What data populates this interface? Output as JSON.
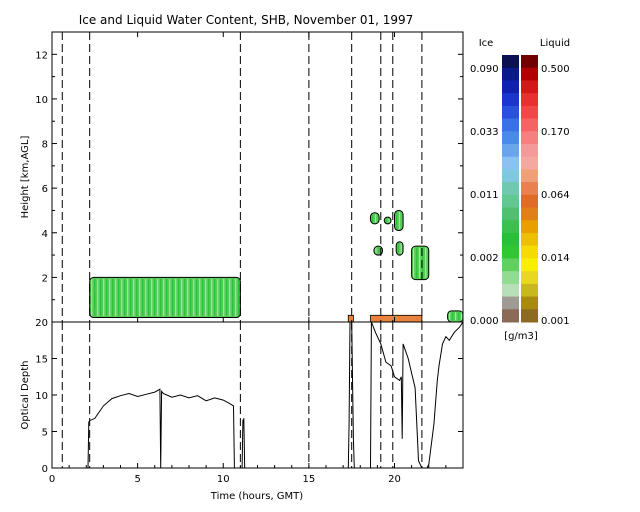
{
  "chart_data": [
    {
      "type": "heatmap",
      "title": "Ice and Liquid Water Content, SHB, November 01, 1997",
      "xlabel": "",
      "ylabel": "Height [km,AGL]",
      "xlim": [
        0,
        24
      ],
      "ylim": [
        0,
        13
      ],
      "x_ticks": [
        0,
        5,
        10,
        15,
        20
      ],
      "x_tick_labels": [
        "",
        "",
        "",
        "",
        ""
      ],
      "y_ticks": [
        2,
        4,
        6,
        8,
        10,
        12
      ],
      "y_tick_labels": [
        "2",
        "4",
        "6",
        "8",
        "10",
        "12"
      ],
      "vertical_dashed_lines_hours": [
        0.6,
        2.2,
        11.0,
        15.0,
        17.5,
        19.2,
        19.9,
        21.6
      ],
      "regions": [
        {
          "kind": "ice",
          "x0": 2.2,
          "x1": 11.0,
          "y0": 0.2,
          "y1": 2.0
        },
        {
          "kind": "ice",
          "x0": 18.6,
          "x1": 19.1,
          "y0": 4.4,
          "y1": 4.9
        },
        {
          "kind": "ice",
          "x0": 19.4,
          "x1": 19.8,
          "y0": 4.4,
          "y1": 4.7
        },
        {
          "kind": "ice",
          "x0": 20.0,
          "x1": 20.5,
          "y0": 4.1,
          "y1": 5.0
        },
        {
          "kind": "ice",
          "x0": 18.8,
          "x1": 19.3,
          "y0": 3.0,
          "y1": 3.4
        },
        {
          "kind": "ice",
          "x0": 20.1,
          "x1": 20.5,
          "y0": 3.0,
          "y1": 3.6
        },
        {
          "kind": "ice",
          "x0": 21.0,
          "x1": 22.0,
          "y0": 1.9,
          "y1": 3.4
        },
        {
          "kind": "ice",
          "x0": 23.1,
          "x1": 24.0,
          "y0": 0.0,
          "y1": 0.5
        },
        {
          "kind": "liquid",
          "x0": 17.3,
          "x1": 17.6,
          "y0": 0.0,
          "y1": 0.3
        },
        {
          "kind": "liquid",
          "x0": 18.6,
          "x1": 21.6,
          "y0": 0.0,
          "y1": 0.3
        }
      ]
    },
    {
      "type": "line",
      "title": "",
      "xlabel": "Time (hours, GMT)",
      "ylabel": "Optical Depth",
      "xlim": [
        0,
        24
      ],
      "ylim": [
        0,
        20
      ],
      "x_ticks": [
        0,
        5,
        10,
        15,
        20
      ],
      "x_tick_labels": [
        "0",
        "5",
        "10",
        "15",
        "20"
      ],
      "y_ticks": [
        0,
        5,
        10,
        15,
        20
      ],
      "y_tick_labels": [
        "0",
        "5",
        "10",
        "15",
        "20"
      ],
      "series": [
        {
          "x": [
            2.1,
            2.15,
            2.2,
            2.5,
            3.0,
            3.5,
            4.0,
            4.5,
            5.0,
            5.5,
            6.0,
            6.3,
            6.35,
            6.4,
            6.5,
            7.0,
            7.5,
            8.0,
            8.5,
            9.0,
            9.5,
            10.0,
            10.4,
            10.6,
            10.65,
            11.1,
            11.15,
            11.2,
            11.25,
            17.3,
            17.35,
            17.4,
            17.5,
            17.6,
            17.65,
            17.7,
            18.6,
            18.65,
            18.9,
            19.2,
            19.5,
            19.8,
            20.0,
            20.3,
            20.4,
            20.45,
            20.5,
            20.8,
            21.0,
            21.2,
            21.4,
            21.6,
            21.9,
            22.0,
            22.3,
            22.5,
            22.6,
            22.8,
            23.0,
            23.2,
            23.5,
            23.8,
            24.0
          ],
          "y": [
            0,
            6.3,
            6.5,
            6.8,
            8.5,
            9.5,
            9.9,
            10.2,
            9.8,
            10.1,
            10.4,
            10.8,
            0,
            10.5,
            10.2,
            9.7,
            10.0,
            9.6,
            9.9,
            9.2,
            9.6,
            9.3,
            8.8,
            8.5,
            0,
            0,
            6.5,
            6.8,
            0,
            0,
            6.3,
            20,
            20,
            4.0,
            0,
            0,
            0,
            20,
            18.5,
            17.0,
            14.5,
            14.0,
            12.5,
            12.0,
            12.5,
            4.0,
            17.0,
            15.0,
            13.0,
            11.0,
            1.0,
            0,
            0,
            0.5,
            6.0,
            12.0,
            14.0,
            17.0,
            18.0,
            17.5,
            18.6,
            19.3,
            20
          ]
        }
      ]
    }
  ],
  "colorbar": {
    "left_label": "Ice",
    "right_label": "Liquid",
    "unit_label": "[g/m3]",
    "ice_values": [
      "0.090",
      "0.033",
      "0.011",
      "0.002",
      "0.000"
    ],
    "liquid_values": [
      "0.500",
      "0.170",
      "0.064",
      "0.014",
      "0.001"
    ],
    "ice_colors": [
      "#0a1050",
      "#0a1a8a",
      "#1020b0",
      "#1a35d0",
      "#2a50e0",
      "#3a70e8",
      "#4a8ae8",
      "#6aa4ec",
      "#8ac2f2",
      "#80c8e0",
      "#70c8b0",
      "#60c890",
      "#50c070",
      "#3cc050",
      "#28c038",
      "#30c830",
      "#60d060",
      "#90dc90",
      "#b8e0b8",
      "#a09a94",
      "#8c6a58"
    ],
    "liquid_colors": [
      "#700000",
      "#b00000",
      "#d41818",
      "#e83030",
      "#f04848",
      "#f46464",
      "#f48080",
      "#f49a9a",
      "#f4a8a0",
      "#f0a078",
      "#e88050",
      "#e06a28",
      "#e08018",
      "#e8a000",
      "#ecc000",
      "#f4dc00",
      "#f8f000",
      "#e8d820",
      "#c8b820",
      "#a88a10",
      "#8c6a20"
    ]
  }
}
